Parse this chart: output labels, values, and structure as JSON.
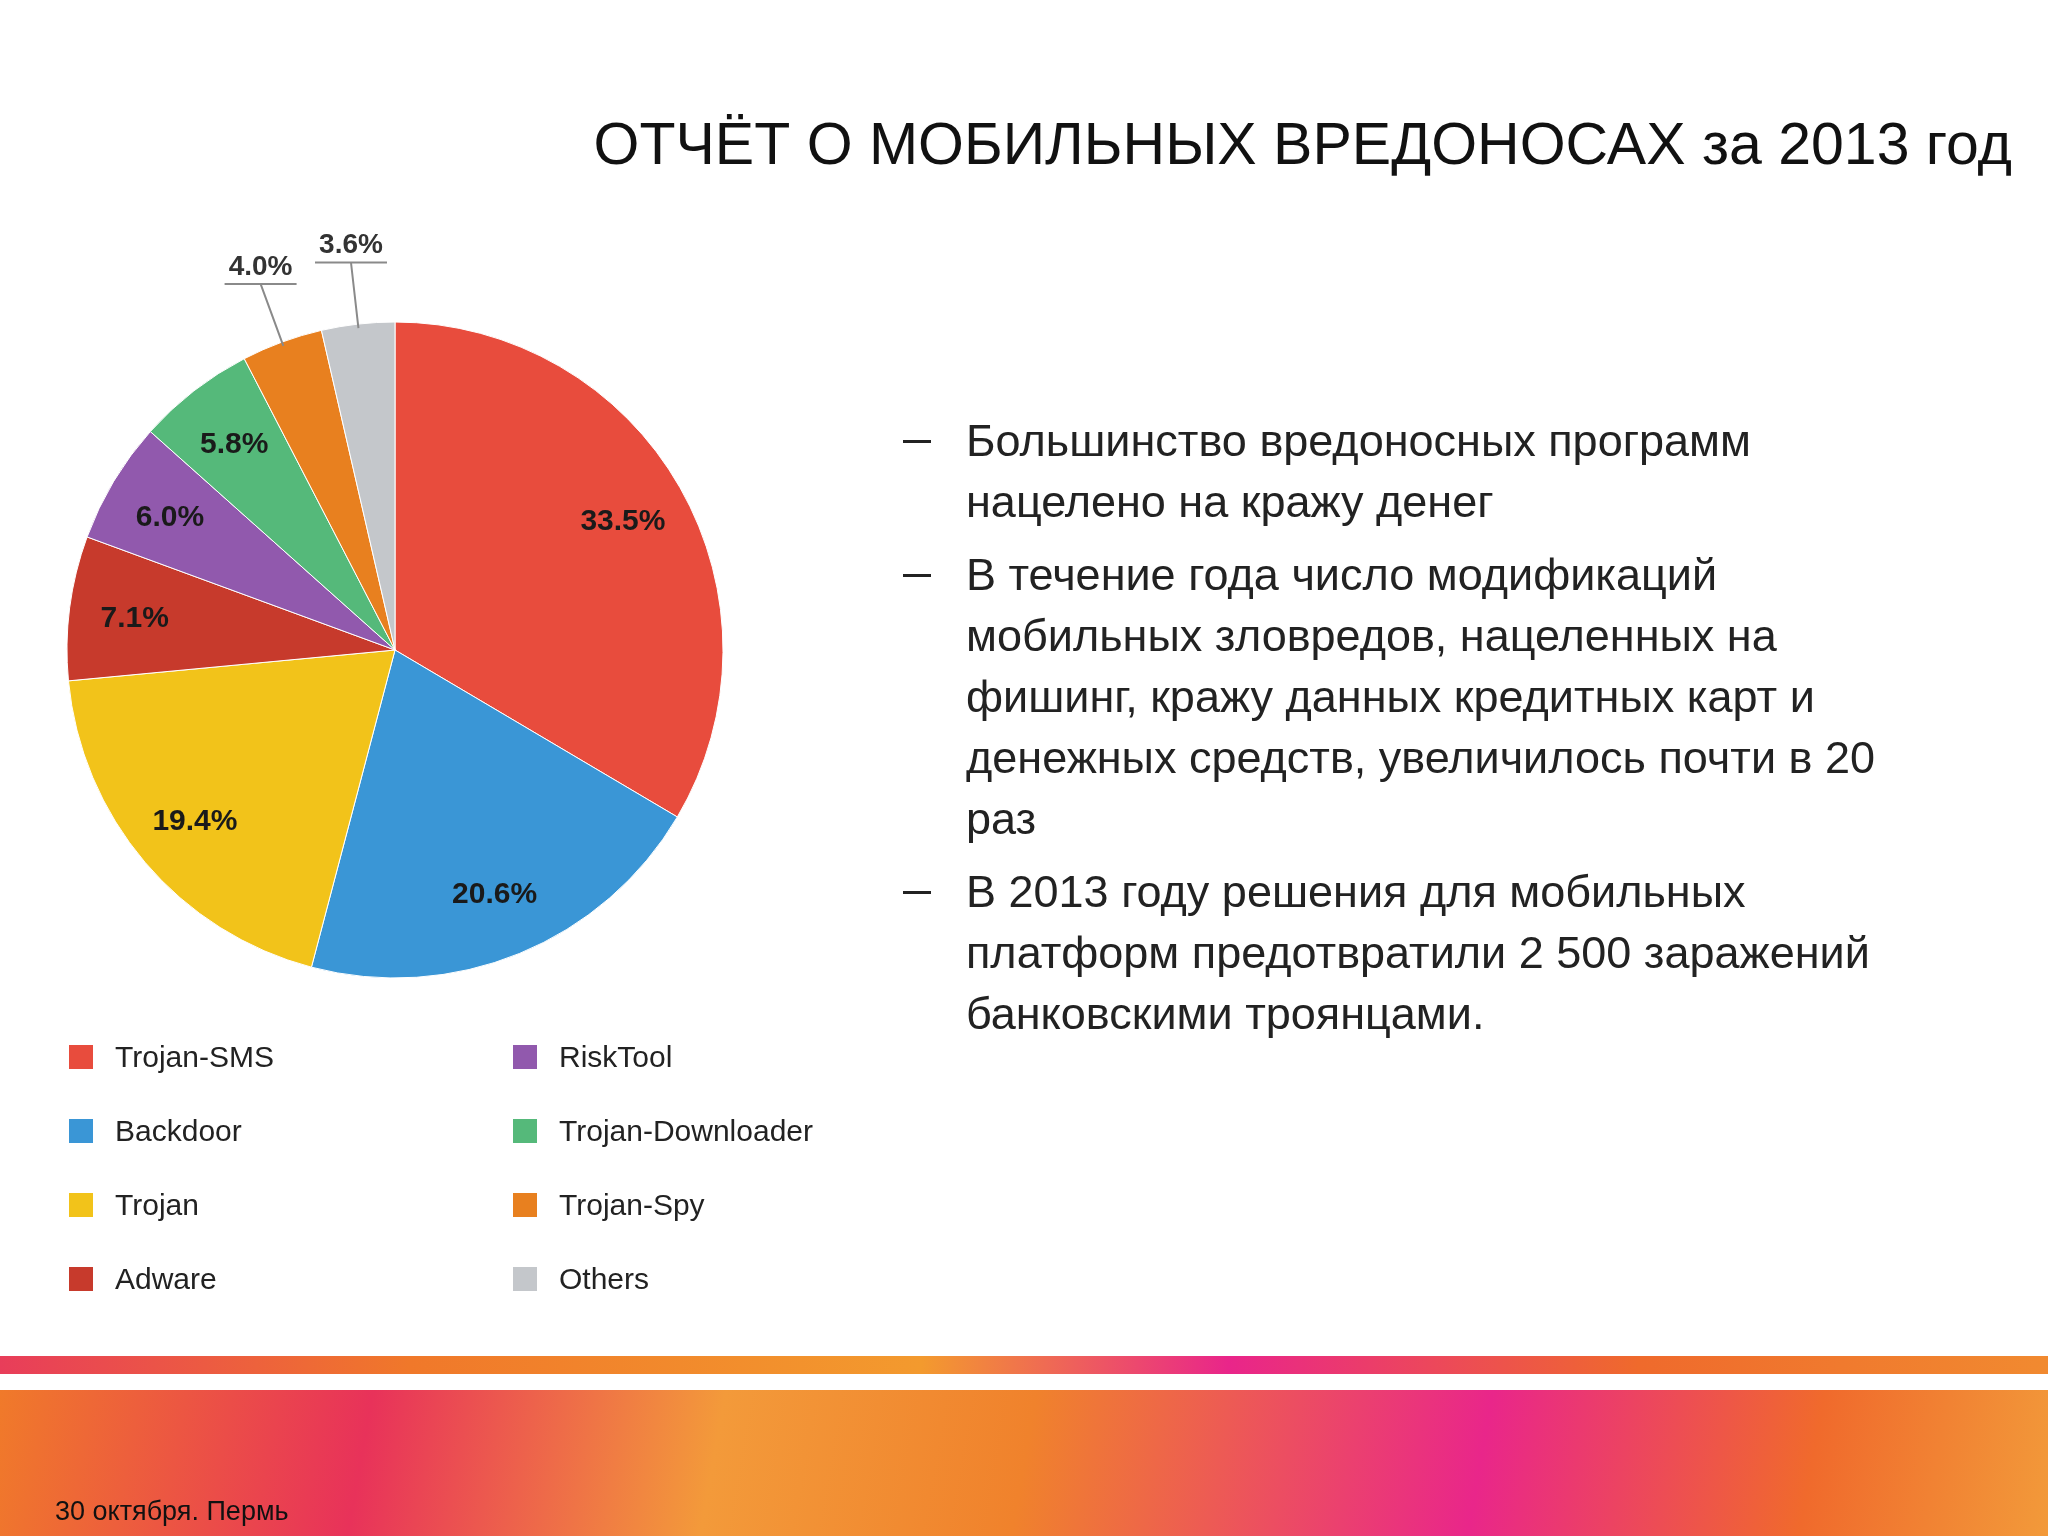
{
  "chart_data": {
    "type": "pie",
    "title": "ОТЧЁТ О МОБИЛЬНЫХ ВРЕДОНОСАХ за 2013 год",
    "categories": [
      "Trojan-SMS",
      "Backdoor",
      "Trojan",
      "Adware",
      "RiskTool",
      "Trojan-Downloader",
      "Trojan-Spy",
      "Others"
    ],
    "values": [
      33.5,
      20.6,
      19.4,
      7.1,
      6.0,
      5.8,
      4.0,
      3.6
    ],
    "colors": [
      "#e84c3d",
      "#3a96d6",
      "#f2c31a",
      "#c73a2c",
      "#9159ad",
      "#55b97a",
      "#e8801f",
      "#c4c7cb"
    ],
    "value_labels": [
      "33.5%",
      "20.6%",
      "19.4%",
      "7.1%",
      "6.0%",
      "5.8%",
      "4.0%",
      "3.6%"
    ],
    "legend": "bottom",
    "annotations": [
      "Большинство вредоносных программ нацелено на кражу денег",
      "В течение года число модификаций мобильных зловредов, нацеленных на фишинг, кражу данных кредитных карт и денежных средств, увеличилось почти в 20 раз",
      "В 2013 году решения для мобильных платформ предотвратили 2 500 заражений банковскими троянцами.",
      "30 октября. Пермь"
    ]
  }
}
